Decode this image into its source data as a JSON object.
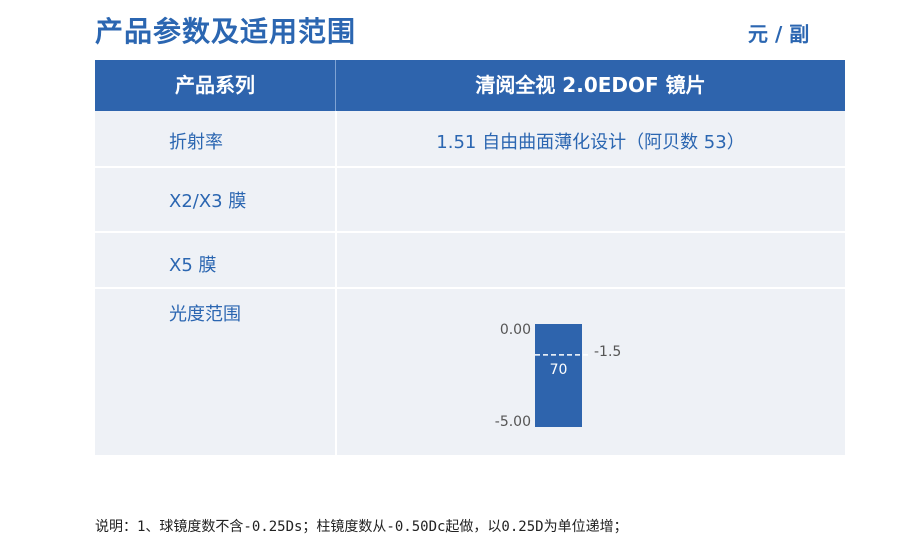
{
  "page": {
    "title": "产品参数及适用范围",
    "unit": "元 / 副"
  },
  "table": {
    "header": {
      "series_label": "产品系列",
      "product_name": "清阅全视 2.0EDOF 镜片"
    },
    "rows": [
      {
        "label": "折射率",
        "value": "1.51 自由曲面薄化设计（阿贝数 53）"
      },
      {
        "label": "X2/X3 膜",
        "value": ""
      },
      {
        "label": "X5 膜",
        "value": ""
      },
      {
        "label": "光度范围",
        "value": ""
      }
    ]
  },
  "power_range": {
    "top_label": "0.00",
    "bottom_label": "-5.00",
    "top": 0.0,
    "bottom": -5.0,
    "marker": -1.5,
    "marker_label": "-1.5",
    "price_label": "70",
    "block_color": "#2e64ad"
  },
  "footer": {
    "note": "说明：1、球镜度数不含-0.25Ds；柱镜度数从-0.50Dc起做，以0.25D为单位递增；"
  }
}
